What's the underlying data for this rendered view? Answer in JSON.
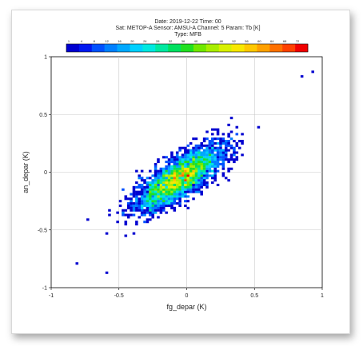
{
  "chart_data": {
    "type": "heatmap",
    "title_lines": [
      "Date: 2019-12-22 Time: 00",
      "Sat: METOP-A Sensor: AMSU-A Channel: 5 Param: Tb [K]",
      "Type: MFB"
    ],
    "xlabel": "fg_depar (K)",
    "ylabel": "an_depar (K)",
    "xlim": [
      -1,
      1
    ],
    "ylim": [
      -1,
      1
    ],
    "x_ticks": [
      -1,
      -0.5,
      0,
      0.5,
      1
    ],
    "x_tick_labels": [
      "-1",
      "-0.5",
      "0",
      "0.5",
      "1"
    ],
    "y_ticks": [
      -1,
      -0.5,
      0,
      0.5,
      1
    ],
    "y_tick_labels": [
      "-1",
      "-0.5",
      "0",
      "0.5",
      "1"
    ],
    "grid": true,
    "colorbar": {
      "placement": "top",
      "labels": [
        "1",
        "4",
        "8",
        "12",
        "16",
        "20",
        "24",
        "28",
        "32",
        "36",
        "40",
        "44",
        "48",
        "52",
        "56",
        "60",
        "64",
        "68",
        "72"
      ],
      "colors": [
        "#0000d0",
        "#0018f0",
        "#0050ff",
        "#0080ff",
        "#00a8ff",
        "#00d0ff",
        "#00e8e0",
        "#00e8a0",
        "#00e060",
        "#20e020",
        "#70e800",
        "#a8ee00",
        "#d8f000",
        "#f8e800",
        "#ffc800",
        "#ffa000",
        "#ff7000",
        "#ff4000",
        "#f00000"
      ]
    },
    "distribution": {
      "center": [
        -0.05,
        -0.05
      ],
      "sd_major": 0.2,
      "sd_minor": 0.07,
      "angle_deg": 40,
      "peak_count": 72,
      "count": 3400,
      "bin_width": 0.02
    },
    "outliers": [
      [
        0.92,
        0.86
      ],
      [
        0.85,
        0.82
      ],
      [
        -0.82,
        -0.79
      ],
      [
        -0.6,
        -0.87
      ]
    ]
  }
}
